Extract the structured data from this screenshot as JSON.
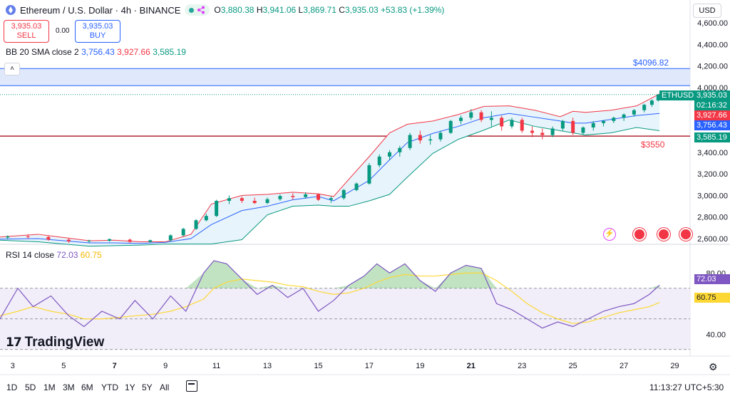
{
  "header": {
    "symbol_title": "Ethereum / U.S. Dollar · 4h · BINANCE",
    "ohlc": {
      "o_label": "O",
      "o_value": "3,880.38",
      "h_label": "H",
      "h_value": "3,941.06",
      "l_label": "L",
      "l_value": "3,869.71",
      "c_label": "C",
      "c_value": "3,935.03",
      "change": "+53.83 (+1.39%)"
    },
    "currency_button": "USD"
  },
  "trade": {
    "sell_price": "3,935.03",
    "sell_label": "SELL",
    "spread": "0.00",
    "buy_price": "3,935.03",
    "buy_label": "BUY"
  },
  "bb_legend": {
    "name": "BB 20 SMA close 2",
    "basis": "3,756.43",
    "upper": "3,927.66",
    "lower": "3,585.19"
  },
  "collapse_icon": "chevron-up-icon",
  "rsi_legend": {
    "name": "RSI 14 close",
    "rsi": "72.03",
    "ma": "60.75"
  },
  "alerts": {
    "upper": "$4096.82",
    "lower": "$3550"
  },
  "price_axis": {
    "labels": [
      "4,600.00",
      "4,400.00",
      "4,200.00",
      "4,000.00",
      "3,400.00",
      "3,200.00",
      "3,000.00",
      "2,800.00",
      "2,600.00"
    ],
    "symbol_tag": "ETHUSD",
    "last_price": "3,935.03",
    "countdown": "02:16:32",
    "bb_upper_tag": "3,927.66",
    "bb_basis_tag": "3,756.43",
    "bb_lower_tag": "3,585.19"
  },
  "rsi_axis": {
    "labels": [
      "80.00",
      "40.00"
    ],
    "rsi_tag": "72.03",
    "ma_tag": "60.75"
  },
  "time_axis": {
    "labels": [
      "3",
      "5",
      "7",
      "9",
      "11",
      "13",
      "15",
      "17",
      "19",
      "21",
      "23",
      "25",
      "27",
      "29"
    ],
    "bold": [
      "7",
      "21"
    ]
  },
  "ranges": [
    "1D",
    "5D",
    "1M",
    "3M",
    "6M",
    "YTD",
    "1Y",
    "5Y",
    "All"
  ],
  "clock": "11:13:27 UTC+5:30",
  "branding": {
    "logo_text": "TradingView",
    "logo_mark": "17"
  },
  "colors": {
    "up": "#089981",
    "down": "#f23645",
    "bb_upper": "#f23645",
    "bb_basis": "#2962ff",
    "bb_lower": "#089981",
    "bb_fill": "#e8f4fb",
    "alert_band": "#dfe9fb",
    "rsi_line": "#7e57c2",
    "rsi_ma": "#fdd835",
    "rsi_bg": "#f1eef9"
  },
  "chart_data": {
    "type": "candlestick",
    "symbol": "ETHUSD",
    "interval": "4h",
    "x_domain_days": [
      2.5,
      29.6
    ],
    "price_ylim": [
      2600,
      4600
    ],
    "last": {
      "value": 3935.03,
      "day": 28.35
    },
    "alert_levels": [
      4096.82,
      3550
    ],
    "bollinger": {
      "days": [
        2.5,
        4,
        5,
        6,
        7,
        8,
        9,
        10,
        10.8,
        12,
        13,
        14,
        15,
        15.6,
        16.2,
        17,
        17.8,
        18.5,
        19.5,
        20.5,
        21.5,
        22.5,
        23.5,
        24.5,
        25,
        25.5,
        26.5,
        27.5,
        28.4
      ],
      "upper": [
        2615,
        2640,
        2610,
        2580,
        2585,
        2570,
        2570,
        2640,
        2920,
        3000,
        3010,
        3030,
        3015,
        2990,
        3150,
        3360,
        3580,
        3660,
        3690,
        3750,
        3825,
        3830,
        3790,
        3730,
        3780,
        3770,
        3790,
        3830,
        3940
      ],
      "basis": [
        2595,
        2600,
        2580,
        2560,
        2560,
        2555,
        2565,
        2600,
        2730,
        2860,
        2900,
        2960,
        2990,
        2950,
        3030,
        3140,
        3330,
        3490,
        3575,
        3640,
        3720,
        3760,
        3725,
        3690,
        3670,
        3670,
        3705,
        3740,
        3760
      ],
      "lower": [
        2585,
        2570,
        2550,
        2530,
        2535,
        2540,
        2550,
        2550,
        2550,
        2590,
        2820,
        2900,
        2910,
        2900,
        2900,
        2950,
        3010,
        3170,
        3390,
        3520,
        3605,
        3700,
        3640,
        3600,
        3580,
        3560,
        3580,
        3630,
        3600
      ]
    },
    "candles": [
      [
        2.8,
        2610,
        2630,
        2590,
        2620
      ],
      [
        3.6,
        2620,
        2640,
        2600,
        2615
      ],
      [
        4.4,
        2615,
        2625,
        2580,
        2590
      ],
      [
        5.2,
        2590,
        2600,
        2560,
        2575
      ],
      [
        6.0,
        2575,
        2590,
        2560,
        2580
      ],
      [
        6.8,
        2580,
        2600,
        2570,
        2595
      ],
      [
        7.6,
        2590,
        2600,
        2560,
        2570
      ],
      [
        8.4,
        2570,
        2590,
        2560,
        2585
      ],
      [
        9.2,
        2585,
        2640,
        2570,
        2630
      ],
      [
        9.7,
        2630,
        2700,
        2620,
        2690
      ],
      [
        10.2,
        2690,
        2780,
        2680,
        2770
      ],
      [
        10.6,
        2770,
        2830,
        2760,
        2810
      ],
      [
        11.0,
        2810,
        2960,
        2800,
        2950
      ],
      [
        11.5,
        2950,
        3000,
        2920,
        2975
      ],
      [
        12.0,
        2975,
        2990,
        2930,
        2950
      ],
      [
        12.5,
        2950,
        2980,
        2920,
        2930
      ],
      [
        13.0,
        2930,
        2980,
        2920,
        2965
      ],
      [
        13.5,
        2965,
        3010,
        2950,
        2995
      ],
      [
        14.0,
        2995,
        3020,
        2960,
        2985
      ],
      [
        14.5,
        2985,
        3030,
        2970,
        3010
      ],
      [
        15.0,
        3010,
        3020,
        2950,
        2960
      ],
      [
        15.5,
        2960,
        2990,
        2930,
        2975
      ],
      [
        16.0,
        2975,
        3060,
        2960,
        3050
      ],
      [
        16.5,
        3050,
        3120,
        3040,
        3110
      ],
      [
        17.0,
        3110,
        3300,
        3100,
        3280
      ],
      [
        17.4,
        3280,
        3380,
        3260,
        3360
      ],
      [
        17.8,
        3360,
        3420,
        3330,
        3400
      ],
      [
        18.2,
        3400,
        3460,
        3360,
        3440
      ],
      [
        18.6,
        3440,
        3580,
        3420,
        3560
      ],
      [
        19.0,
        3560,
        3600,
        3480,
        3510
      ],
      [
        19.4,
        3510,
        3560,
        3470,
        3520
      ],
      [
        19.8,
        3520,
        3600,
        3500,
        3580
      ],
      [
        20.2,
        3580,
        3700,
        3570,
        3690
      ],
      [
        20.6,
        3690,
        3740,
        3660,
        3720
      ],
      [
        21.0,
        3720,
        3800,
        3700,
        3770
      ],
      [
        21.4,
        3770,
        3790,
        3680,
        3700
      ],
      [
        21.8,
        3700,
        3780,
        3640,
        3720
      ],
      [
        22.2,
        3720,
        3740,
        3600,
        3640
      ],
      [
        22.6,
        3640,
        3720,
        3620,
        3700
      ],
      [
        23.0,
        3700,
        3720,
        3580,
        3600
      ],
      [
        23.4,
        3600,
        3640,
        3540,
        3580
      ],
      [
        23.8,
        3580,
        3620,
        3520,
        3560
      ],
      [
        24.2,
        3560,
        3640,
        3540,
        3620
      ],
      [
        24.6,
        3620,
        3700,
        3600,
        3690
      ],
      [
        25.0,
        3690,
        3720,
        3560,
        3580
      ],
      [
        25.4,
        3580,
        3640,
        3560,
        3630
      ],
      [
        25.8,
        3630,
        3690,
        3600,
        3670
      ],
      [
        26.2,
        3670,
        3700,
        3640,
        3690
      ],
      [
        26.6,
        3690,
        3730,
        3670,
        3720
      ],
      [
        27.0,
        3720,
        3760,
        3690,
        3750
      ],
      [
        27.4,
        3750,
        3800,
        3730,
        3790
      ],
      [
        27.8,
        3790,
        3850,
        3770,
        3840
      ],
      [
        28.1,
        3840,
        3890,
        3820,
        3880
      ],
      [
        28.35,
        3880.38,
        3941.06,
        3869.71,
        3935.03
      ]
    ],
    "rsi": {
      "ylim": [
        35,
        95
      ],
      "guide_levels": [
        70,
        50,
        30
      ],
      "days": [
        2.5,
        3.2,
        3.8,
        4.5,
        5.2,
        5.8,
        6.5,
        7.2,
        7.8,
        8.5,
        9.2,
        9.8,
        10.5,
        10.9,
        11.4,
        12.0,
        12.6,
        13.2,
        13.8,
        14.4,
        15.0,
        15.6,
        16.2,
        16.8,
        17.3,
        17.8,
        18.4,
        19.0,
        19.6,
        20.2,
        20.8,
        21.4,
        22.0,
        22.6,
        23.2,
        23.8,
        24.4,
        25.0,
        25.6,
        26.2,
        26.8,
        27.4,
        28.0,
        28.4
      ],
      "rsi_values": [
        50,
        70,
        58,
        65,
        52,
        45,
        55,
        50,
        62,
        50,
        65,
        55,
        80,
        88,
        86,
        76,
        66,
        72,
        64,
        70,
        55,
        62,
        72,
        78,
        86,
        80,
        86,
        75,
        68,
        80,
        85,
        83,
        60,
        56,
        50,
        44,
        48,
        45,
        50,
        55,
        58,
        60,
        66,
        72.03
      ],
      "ma_values": [
        52,
        55,
        58,
        55,
        53,
        50,
        50,
        51,
        52,
        53,
        55,
        58,
        63,
        70,
        74,
        76,
        75,
        74,
        72,
        71,
        68,
        66,
        67,
        70,
        74,
        77,
        79,
        78,
        78,
        79,
        80,
        80,
        75,
        68,
        60,
        54,
        50,
        47,
        48,
        51,
        54,
        56,
        58,
        60.75
      ]
    }
  }
}
